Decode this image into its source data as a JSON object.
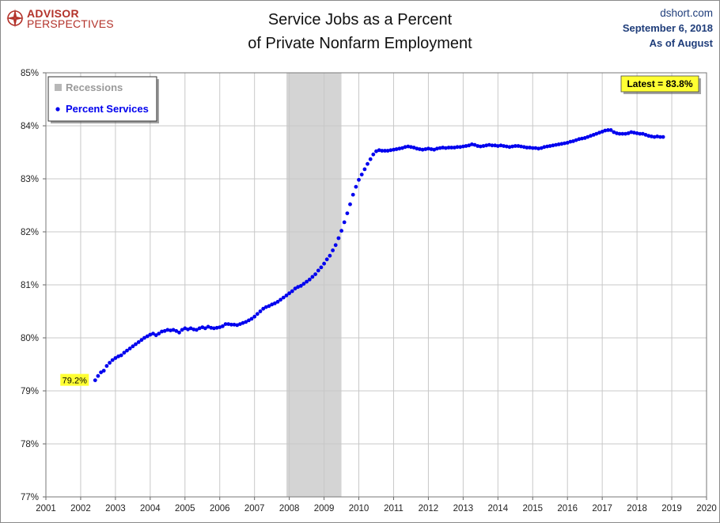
{
  "header": {
    "logo_top": "ADVISOR",
    "logo_bottom": "PERSPECTIVES",
    "title_line1": "Service Jobs as a Percent",
    "title_line2": "of Private Nonfarm Employment",
    "site": "dshort.com",
    "date": "September 6, 2018",
    "as_of": "As of August"
  },
  "colors": {
    "series": "#0000ee",
    "recession": "#d4d4d4",
    "callout_bg": "#ffff33",
    "grid": "#c8c8c8",
    "title_blue": "#1f3d7a",
    "logo_red": "#b3322a"
  },
  "chart_data": {
    "type": "scatter",
    "title": "Service Jobs as a Percent of Private Nonfarm Employment",
    "xlabel": "",
    "ylabel": "",
    "xlim": [
      2001,
      2020
    ],
    "ylim": [
      77,
      85
    ],
    "x_ticks": [
      "2001",
      "2002",
      "2003",
      "2004",
      "2005",
      "2006",
      "2007",
      "2008",
      "2009",
      "2010",
      "2011",
      "2012",
      "2013",
      "2014",
      "2015",
      "2016",
      "2017",
      "2018",
      "2019",
      "2020"
    ],
    "y_ticks": [
      "77%",
      "78%",
      "79%",
      "80%",
      "81%",
      "82%",
      "83%",
      "84%",
      "85%"
    ],
    "grid": true,
    "legend": {
      "placement": "top-left",
      "items": [
        {
          "label": "Recessions",
          "kind": "recession"
        },
        {
          "label": "Percent Services",
          "kind": "series"
        }
      ]
    },
    "recession": {
      "start": 2007.92,
      "end": 2009.5
    },
    "annotations": {
      "start_label": "79.2%",
      "latest_label": "Latest = 83.8%"
    },
    "series": [
      {
        "name": "Percent Services",
        "start": "2002-06",
        "frequency": "monthly",
        "values": [
          79.2,
          79.28,
          79.35,
          79.38,
          79.47,
          79.53,
          79.58,
          79.62,
          79.65,
          79.67,
          79.72,
          79.76,
          79.8,
          79.84,
          79.88,
          79.92,
          79.96,
          80.0,
          80.03,
          80.06,
          80.08,
          80.05,
          80.08,
          80.12,
          80.13,
          80.15,
          80.14,
          80.15,
          80.13,
          80.1,
          80.15,
          80.18,
          80.16,
          80.18,
          80.16,
          80.15,
          80.18,
          80.2,
          80.18,
          80.21,
          80.19,
          80.18,
          80.19,
          80.2,
          80.22,
          80.26,
          80.26,
          80.25,
          80.25,
          80.24,
          80.26,
          80.28,
          80.3,
          80.33,
          80.36,
          80.4,
          80.45,
          80.5,
          80.55,
          80.58,
          80.6,
          80.63,
          80.65,
          80.68,
          80.72,
          80.76,
          80.8,
          80.84,
          80.88,
          80.93,
          80.96,
          80.98,
          81.02,
          81.06,
          81.1,
          81.15,
          81.2,
          81.27,
          81.33,
          81.4,
          81.48,
          81.55,
          81.65,
          81.75,
          81.88,
          82.02,
          82.18,
          82.35,
          82.52,
          82.7,
          82.85,
          82.98,
          83.08,
          83.18,
          83.28,
          83.37,
          83.46,
          83.52,
          83.54,
          83.53,
          83.53,
          83.53,
          83.54,
          83.55,
          83.56,
          83.57,
          83.58,
          83.6,
          83.61,
          83.6,
          83.59,
          83.57,
          83.56,
          83.55,
          83.56,
          83.57,
          83.56,
          83.55,
          83.57,
          83.58,
          83.59,
          83.58,
          83.59,
          83.59,
          83.59,
          83.6,
          83.6,
          83.61,
          83.62,
          83.63,
          83.65,
          83.64,
          83.62,
          83.61,
          83.62,
          83.63,
          83.64,
          83.63,
          83.63,
          83.62,
          83.63,
          83.62,
          83.61,
          83.6,
          83.61,
          83.62,
          83.62,
          83.61,
          83.6,
          83.59,
          83.59,
          83.58,
          83.58,
          83.57,
          83.58,
          83.6,
          83.61,
          83.62,
          83.63,
          83.64,
          83.65,
          83.66,
          83.67,
          83.68,
          83.7,
          83.71,
          83.73,
          83.75,
          83.76,
          83.77,
          83.79,
          83.81,
          83.83,
          83.85,
          83.87,
          83.89,
          83.91,
          83.92,
          83.92,
          83.88,
          83.86,
          83.85,
          83.85,
          83.85,
          83.86,
          83.88,
          83.87,
          83.86,
          83.85,
          83.85,
          83.83,
          83.81,
          83.8,
          83.79,
          83.8,
          83.79,
          83.79
        ]
      }
    ]
  }
}
